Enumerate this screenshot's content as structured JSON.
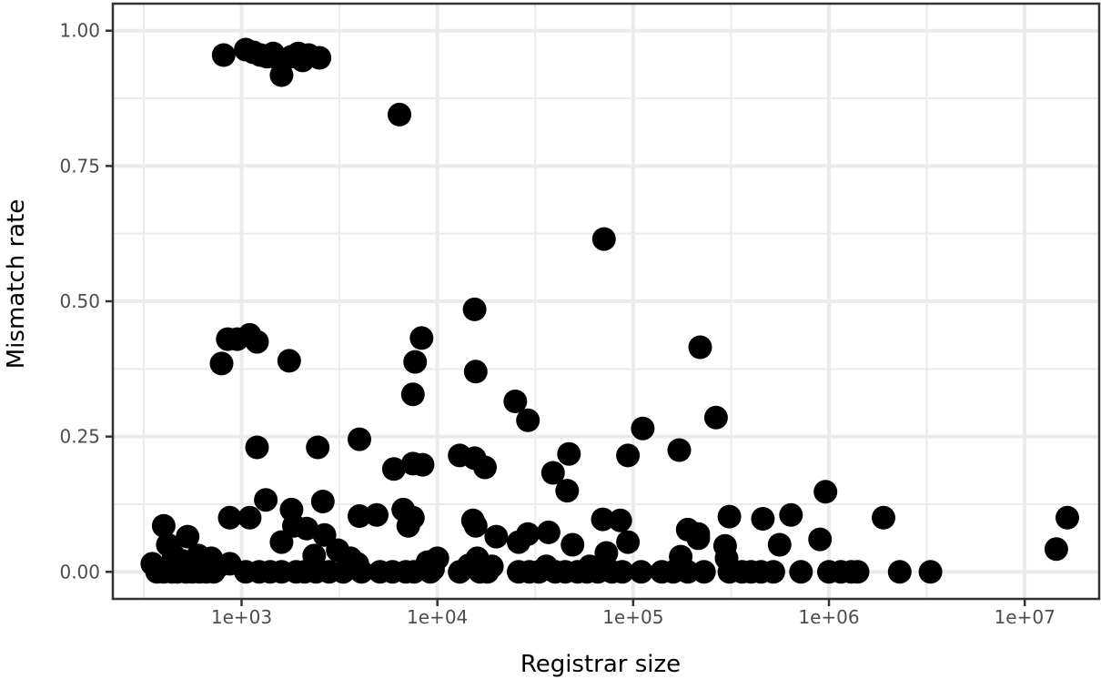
{
  "chart_data": {
    "type": "scatter",
    "title": "",
    "xlabel": "Registrar size",
    "ylabel": "Mismatch rate",
    "x_scale": "log10",
    "xlim": [
      220,
      24000000
    ],
    "ylim": [
      -0.05,
      1.05
    ],
    "x_ticks": [
      1000,
      10000,
      100000,
      1000000,
      10000000
    ],
    "x_tick_labels": [
      "1e+03",
      "1e+04",
      "1e+05",
      "1e+06",
      "1e+07"
    ],
    "y_ticks": [
      0,
      0.25,
      0.5,
      0.75,
      1.0
    ],
    "y_tick_labels": [
      "0.00",
      "0.25",
      "0.50",
      "0.75",
      "1.00"
    ],
    "grid": true,
    "legend": "none",
    "colors": {
      "points": "#000000",
      "grid": "#ebebeb",
      "panel_border": "#333333",
      "background": "#ffffff"
    },
    "points": [
      [
        810,
        0.955
      ],
      [
        1050,
        0.965
      ],
      [
        1150,
        0.96
      ],
      [
        1250,
        0.955
      ],
      [
        1350,
        0.952
      ],
      [
        1450,
        0.958
      ],
      [
        1520,
        0.95
      ],
      [
        1600,
        0.918
      ],
      [
        1800,
        0.952
      ],
      [
        1950,
        0.958
      ],
      [
        2050,
        0.945
      ],
      [
        2200,
        0.955
      ],
      [
        2500,
        0.95
      ],
      [
        6400,
        0.845
      ],
      [
        71000,
        0.615
      ],
      [
        15500,
        0.485
      ],
      [
        850,
        0.43
      ],
      [
        950,
        0.43
      ],
      [
        1100,
        0.438
      ],
      [
        1200,
        0.425
      ],
      [
        8300,
        0.432
      ],
      [
        790,
        0.385
      ],
      [
        1750,
        0.39
      ],
      [
        7700,
        0.388
      ],
      [
        220000,
        0.415
      ],
      [
        15700,
        0.37
      ],
      [
        7500,
        0.328
      ],
      [
        25000,
        0.315
      ],
      [
        29000,
        0.28
      ],
      [
        265000,
        0.285
      ],
      [
        112000,
        0.265
      ],
      [
        1200,
        0.23
      ],
      [
        2450,
        0.23
      ],
      [
        4000,
        0.245
      ],
      [
        94000,
        0.215
      ],
      [
        47000,
        0.218
      ],
      [
        172000,
        0.225
      ],
      [
        13000,
        0.215
      ],
      [
        15500,
        0.21
      ],
      [
        17500,
        0.193
      ],
      [
        7500,
        0.2
      ],
      [
        8400,
        0.198
      ],
      [
        6000,
        0.19
      ],
      [
        39000,
        0.183
      ],
      [
        46000,
        0.15
      ],
      [
        1330,
        0.133
      ],
      [
        2600,
        0.13
      ],
      [
        1800,
        0.115
      ],
      [
        6700,
        0.115
      ],
      [
        960000,
        0.148
      ],
      [
        1900000,
        0.1
      ],
      [
        16500000,
        0.1
      ],
      [
        14500000,
        0.042
      ],
      [
        870,
        0.1
      ],
      [
        1100,
        0.1
      ],
      [
        4000,
        0.103
      ],
      [
        4900,
        0.105
      ],
      [
        7100,
        0.085
      ],
      [
        7500,
        0.1
      ],
      [
        15200,
        0.095
      ],
      [
        15700,
        0.085
      ],
      [
        20000,
        0.065
      ],
      [
        29000,
        0.07
      ],
      [
        37000,
        0.073
      ],
      [
        70000,
        0.097
      ],
      [
        86000,
        0.095
      ],
      [
        94000,
        0.055
      ],
      [
        190000,
        0.078
      ],
      [
        215000,
        0.07
      ],
      [
        310000,
        0.102
      ],
      [
        460000,
        0.098
      ],
      [
        640000,
        0.105
      ],
      [
        900000,
        0.06
      ],
      [
        560000,
        0.05
      ],
      [
        295000,
        0.048
      ],
      [
        49000,
        0.05
      ],
      [
        73000,
        0.035
      ],
      [
        175000,
        0.028
      ],
      [
        215000,
        0.062
      ],
      [
        400,
        0.085
      ],
      [
        420,
        0.05
      ],
      [
        450,
        0.03
      ],
      [
        530,
        0.065
      ],
      [
        500,
        0.02
      ],
      [
        600,
        0.03
      ],
      [
        700,
        0.025
      ],
      [
        760,
        0.01
      ],
      [
        870,
        0.015
      ],
      [
        1600,
        0.055
      ],
      [
        1850,
        0.085
      ],
      [
        2150,
        0.08
      ],
      [
        2650,
        0.068
      ],
      [
        3100,
        0.04
      ],
      [
        2350,
        0.03
      ],
      [
        3600,
        0.025
      ],
      [
        3900,
        0.015
      ],
      [
        8900,
        0.018
      ],
      [
        10000,
        0.025
      ],
      [
        16000,
        0.025
      ],
      [
        14500,
        0.012
      ],
      [
        26000,
        0.055
      ],
      [
        36000,
        0.01
      ],
      [
        60000,
        0.01
      ],
      [
        300000,
        0.025
      ],
      [
        19000,
        0.01
      ],
      [
        9500,
        0.005
      ],
      [
        350,
        0.015
      ],
      [
        370,
        0.0
      ],
      [
        400,
        0.0
      ],
      [
        440,
        0.0
      ],
      [
        470,
        0.0
      ],
      [
        520,
        0.0
      ],
      [
        560,
        0.0
      ],
      [
        610,
        0.0
      ],
      [
        660,
        0.0
      ],
      [
        720,
        0.0
      ],
      [
        1050,
        0.0
      ],
      [
        1230,
        0.0
      ],
      [
        1400,
        0.0
      ],
      [
        1600,
        0.0
      ],
      [
        1900,
        0.0
      ],
      [
        2100,
        0.0
      ],
      [
        2400,
        0.0
      ],
      [
        2800,
        0.0
      ],
      [
        3300,
        0.0
      ],
      [
        4100,
        0.0
      ],
      [
        5100,
        0.0
      ],
      [
        5900,
        0.0
      ],
      [
        6900,
        0.0
      ],
      [
        7600,
        0.0
      ],
      [
        9200,
        0.0
      ],
      [
        13000,
        0.0
      ],
      [
        16500,
        0.0
      ],
      [
        18000,
        0.0
      ],
      [
        26000,
        0.0
      ],
      [
        29500,
        0.0
      ],
      [
        33000,
        0.0
      ],
      [
        40000,
        0.0
      ],
      [
        45000,
        0.0
      ],
      [
        52000,
        0.0
      ],
      [
        58000,
        0.0
      ],
      [
        66000,
        0.0
      ],
      [
        78000,
        0.0
      ],
      [
        88000,
        0.0
      ],
      [
        110000,
        0.0
      ],
      [
        140000,
        0.0
      ],
      [
        160000,
        0.0
      ],
      [
        190000,
        0.0
      ],
      [
        230000,
        0.0
      ],
      [
        310000,
        0.0
      ],
      [
        360000,
        0.0
      ],
      [
        400000,
        0.0
      ],
      [
        450000,
        0.0
      ],
      [
        520000,
        0.0
      ],
      [
        720000,
        0.0
      ],
      [
        1000000,
        0.0
      ],
      [
        1150000,
        0.0
      ],
      [
        1300000,
        0.0
      ],
      [
        1400000,
        0.0
      ],
      [
        2300000,
        0.0
      ],
      [
        3300000,
        0.0
      ]
    ]
  }
}
